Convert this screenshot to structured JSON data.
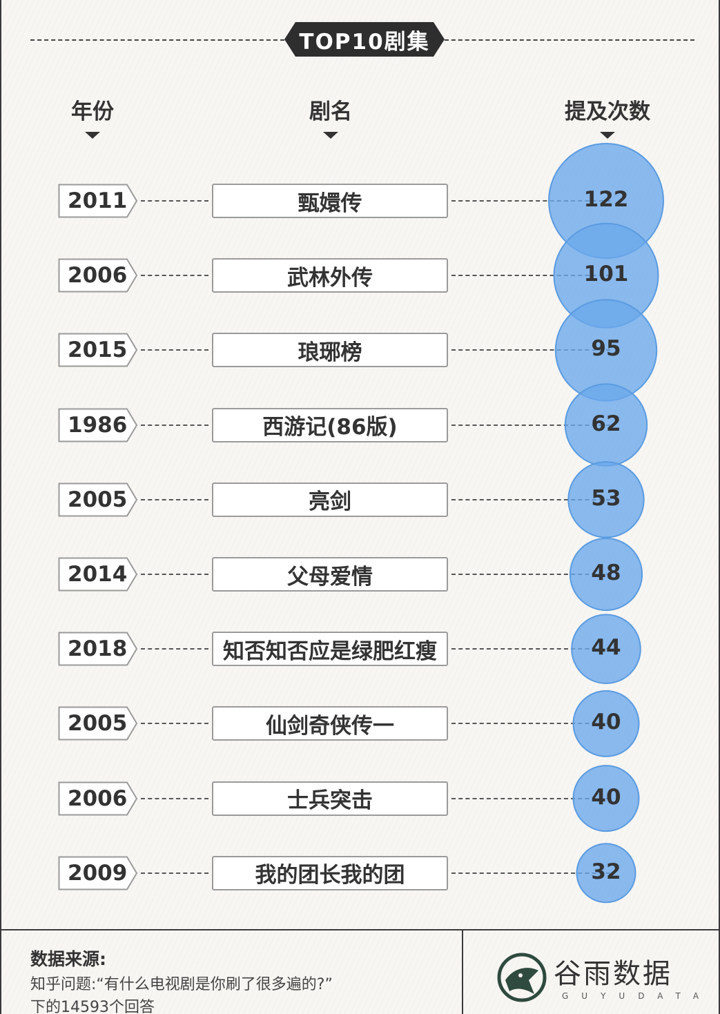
{
  "title": "TOP10剧集",
  "headers": {
    "year": "年份",
    "name": "剧名",
    "count": "提及次数"
  },
  "chart_data": {
    "type": "bubble",
    "title": "TOP10剧集",
    "rows": [
      {
        "year": "2011",
        "name": "甄嬛传",
        "count": 122
      },
      {
        "year": "2006",
        "name": "武林外传",
        "count": 101
      },
      {
        "year": "2015",
        "name": "琅琊榜",
        "count": 95
      },
      {
        "year": "1986",
        "name": "西游记(86版)",
        "count": 62
      },
      {
        "year": "2005",
        "name": "亮剑",
        "count": 53
      },
      {
        "year": "2014",
        "name": "父母爱情",
        "count": 48
      },
      {
        "year": "2018",
        "name": "知否知否应是绿肥红瘦",
        "count": 44
      },
      {
        "year": "2005",
        "name": "仙剑奇侠传一",
        "count": 40
      },
      {
        "year": "2006",
        "name": "士兵突击",
        "count": 40
      },
      {
        "year": "2009",
        "name": "我的团长我的团",
        "count": 32
      }
    ],
    "bubble_color": "#6aa8ea"
  },
  "footer": {
    "source_label": "数据来源:",
    "source_line1": "知乎问题:“有什么电视剧是你刷了很多遍的?”",
    "source_line2": "下的14593个回答"
  },
  "logo": {
    "name": "谷雨数据",
    "sub": "GUYUDATA"
  }
}
